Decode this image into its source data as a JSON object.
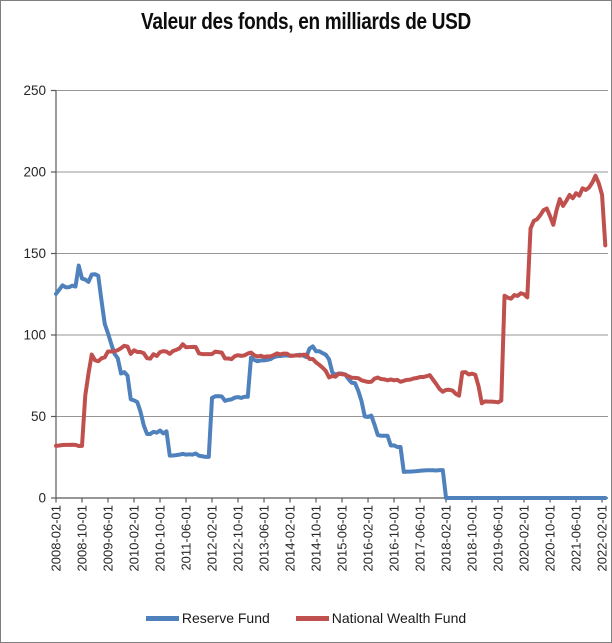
{
  "chart_data": {
    "type": "line",
    "title": "Valeur des fonds, en milliards de USD",
    "xlabel": "",
    "ylabel": "",
    "x_start": "2008-02-01",
    "x_freq": "monthly",
    "x_tick_every": 8,
    "x_tick_labels": [
      "2008-02-01",
      "2008-10-01",
      "2009-06-01",
      "2010-02-01",
      "2010-10-01",
      "2011-06-01",
      "2012-02-01",
      "2012-10-01",
      "2013-06-01",
      "2014-02-01",
      "2014-10-01",
      "2015-06-01",
      "2016-02-01",
      "2016-10-01",
      "2017-06-01",
      "2018-02-01",
      "2018-10-01",
      "2019-06-01",
      "2020-02-01",
      "2020-10-01",
      "2021-06-01",
      "2022-02-01"
    ],
    "y_ticks": [
      0,
      50,
      100,
      150,
      200,
      250
    ],
    "ylim": [
      0,
      250
    ],
    "grid": true,
    "legend_position": "bottom",
    "background": "#ffffff",
    "gridline_color": "#969696",
    "axis_color": "#595959",
    "series": [
      {
        "name": "Reserve Fund",
        "color": "#4F81BD",
        "values": [
          125.2,
          127.8,
          130.5,
          129.3,
          129.3,
          130.3,
          129.7,
          142.6,
          134.6,
          134.0,
          132.6,
          137.1,
          137.3,
          136.3,
          121.1,
          106.8,
          101.0,
          94.5,
          88.5,
          85.7,
          76.4,
          77.2,
          75.1,
          60.5,
          59.9,
          58.9,
          52.9,
          44.6,
          39.3,
          39.3,
          40.6,
          40.1,
          41.4,
          39.6,
          40.9,
          26.0,
          26.1,
          26.3,
          26.6,
          27.1,
          26.6,
          26.8,
          26.6,
          27.3,
          25.9,
          25.6,
          25.2,
          25.2,
          61.4,
          62.4,
          62.5,
          62.3,
          59.6,
          60.2,
          60.5,
          61.6,
          61.9,
          61.4,
          62.1,
          62.1,
          86.2,
          84.7,
          83.9,
          84.4,
          84.4,
          84.7,
          85.2,
          86.4,
          87.0,
          87.1,
          87.4,
          87.4,
          87.3,
          87.3,
          87.6,
          87.9,
          87.4,
          86.5,
          91.7,
          93.0,
          90.0,
          90.0,
          88.9,
          87.9,
          85.1,
          77.1,
          75.7,
          76.4,
          76.3,
          75.8,
          72.9,
          70.7,
          70.5,
          65.7,
          59.4,
          50.0,
          49.7,
          50.6,
          45.0,
          38.6,
          38.2,
          38.2,
          38.2,
          32.2,
          32.3,
          31.3,
          31.3,
          16.0,
          16.2,
          16.2,
          16.3,
          16.5,
          16.7,
          16.9,
          17.0,
          17.0,
          17.0,
          16.9,
          17.1,
          17.1,
          0,
          0,
          0,
          0,
          0,
          0,
          0,
          0,
          0,
          0,
          0,
          0,
          0,
          0,
          0,
          0,
          0,
          0,
          0,
          0,
          0,
          0,
          0,
          0,
          0,
          0,
          0,
          0,
          0,
          0,
          0,
          0,
          0,
          0,
          0,
          0,
          0,
          0,
          0,
          0,
          0,
          0,
          0,
          0,
          0,
          0,
          0,
          0,
          0,
          0
        ]
      },
      {
        "name": "National Wealth Fund",
        "color": "#C0504D",
        "values": [
          32.0,
          32.2,
          32.5,
          32.6,
          32.6,
          32.7,
          32.6,
          31.9,
          32.0,
          62.8,
          76.4,
          88.0,
          84.5,
          83.9,
          85.7,
          86.3,
          89.9,
          89.9,
          90.0,
          90.7,
          91.9,
          93.4,
          92.9,
          88.4,
          90.6,
          89.6,
          89.6,
          88.8,
          85.8,
          85.5,
          88.2,
          87.1,
          89.5,
          90.1,
          89.8,
          88.4,
          90.2,
          90.9,
          91.8,
          94.3,
          92.5,
          92.6,
          92.7,
          92.6,
          88.7,
          88.3,
          88.3,
          88.3,
          88.3,
          89.8,
          89.5,
          89.2,
          85.6,
          85.6,
          85.2,
          87.0,
          87.6,
          87.2,
          87.5,
          88.6,
          89.2,
          87.6,
          86.8,
          87.3,
          86.5,
          86.9,
          86.9,
          87.7,
          88.7,
          88.1,
          88.6,
          88.6,
          87.3,
          87.3,
          87.6,
          87.3,
          87.9,
          87.9,
          85.3,
          85.3,
          83.2,
          81.7,
          80.0,
          78.0,
          74.0,
          74.9,
          74.4,
          76.3,
          75.9,
          75.7,
          74.6,
          73.8,
          73.7,
          73.5,
          72.2,
          71.7,
          71.2,
          71.3,
          73.2,
          73.9,
          73.0,
          72.8,
          72.2,
          72.7,
          72.2,
          72.5,
          71.3,
          71.9,
          72.5,
          72.6,
          73.3,
          73.6,
          74.2,
          74.2,
          74.7,
          75.4,
          72.6,
          69.9,
          66.9,
          65.2,
          66.3,
          66.4,
          65.9,
          63.9,
          62.8,
          77.1,
          77.2,
          75.8,
          76.3,
          75.6,
          68.6,
          58.1,
          59.3,
          59.1,
          59.1,
          59.0,
          58.7,
          59.8,
          124.1,
          122.9,
          122.3,
          124.5,
          124.0,
          125.6,
          125.0,
          123.1,
          165.4,
          170.0,
          171.0,
          173.5,
          176.6,
          177.6,
          172.9,
          167.6,
          176.6,
          183.4,
          179.2,
          182.3,
          185.9,
          183.9,
          187.0,
          185.5,
          190.0,
          189.0,
          190.5,
          193.5,
          197.7,
          193.0,
          186.0,
          155.0
        ]
      }
    ]
  }
}
